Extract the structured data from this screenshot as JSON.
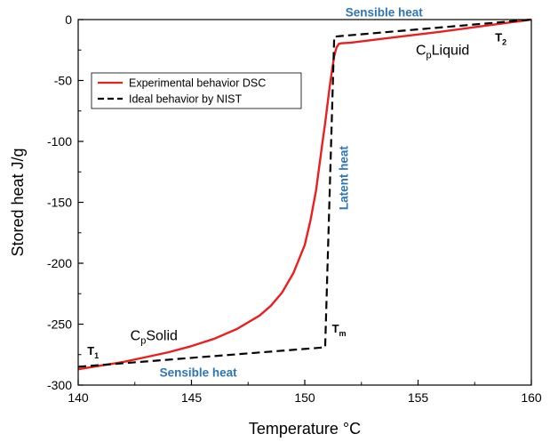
{
  "chart_data": {
    "type": "line",
    "xlabel": "Temperature °C",
    "ylabel": "Stored heat J/g",
    "xlim": [
      140,
      160
    ],
    "ylim": [
      -300,
      0
    ],
    "xticks": [
      140,
      145,
      150,
      155,
      160
    ],
    "yticks": [
      0,
      -50,
      -100,
      -150,
      -200,
      -250,
      -300
    ],
    "xtick_labels": [
      "140",
      "145",
      "150",
      "155",
      "160"
    ],
    "ytick_labels": [
      "0",
      "-50",
      "-100",
      "-150",
      "-200",
      "-250",
      "-300"
    ],
    "legend": {
      "position": "top-left"
    },
    "series": [
      {
        "name": "Experimental behavior DSC",
        "color": "#e8201f",
        "style": "solid",
        "x": [
          140,
          141,
          142,
          143,
          144,
          145,
          146,
          147,
          148,
          148.5,
          149,
          149.5,
          150,
          150.25,
          150.5,
          150.75,
          150.9,
          151.0,
          151.1,
          151.2,
          151.3,
          151.4,
          151.5,
          151.6,
          152,
          154,
          156,
          158,
          160
        ],
        "y": [
          -287,
          -284,
          -281,
          -277,
          -273,
          -268,
          -262,
          -254,
          -243,
          -235,
          -224,
          -208,
          -185,
          -165,
          -140,
          -105,
          -85,
          -70,
          -55,
          -42,
          -30,
          -23,
          -20,
          -19.5,
          -19,
          -14.5,
          -10,
          -5,
          0
        ]
      },
      {
        "name": "Ideal behavior by NIST",
        "color": "#000000",
        "style": "dashed",
        "x": [
          140,
          150.9,
          151.3,
          160
        ],
        "y": [
          -285,
          -269,
          -14,
          0
        ]
      }
    ],
    "annotations": [
      {
        "id": "sensible-top",
        "text": "Sensible heat",
        "color": "#2f75b5",
        "x": 153.5,
        "y": 2.5
      },
      {
        "id": "sensible-bottom",
        "text": "Sensible heat",
        "color": "#2f75b5",
        "x": 145.3,
        "y": -293
      },
      {
        "id": "latent",
        "text": "Latent heat",
        "color": "#2f75b5",
        "x": 151.9,
        "y": -130,
        "rotate": -90
      },
      {
        "id": "cp-liquid",
        "main": "C",
        "sub": "p",
        "rest": "Liquid",
        "x": 154.9,
        "y": -29
      },
      {
        "id": "cp-solid",
        "main": "C",
        "sub": "p",
        "rest": "Solid",
        "x": 142.3,
        "y": -263
      },
      {
        "id": "t1",
        "main": "T",
        "sub": "1",
        "x": 140.4,
        "y": -275
      },
      {
        "id": "t2",
        "main": "T",
        "sub": "2",
        "x": 158.4,
        "y": -18
      },
      {
        "id": "tm",
        "main": "T",
        "sub": "m",
        "x": 151.2,
        "y": -257
      }
    ]
  }
}
